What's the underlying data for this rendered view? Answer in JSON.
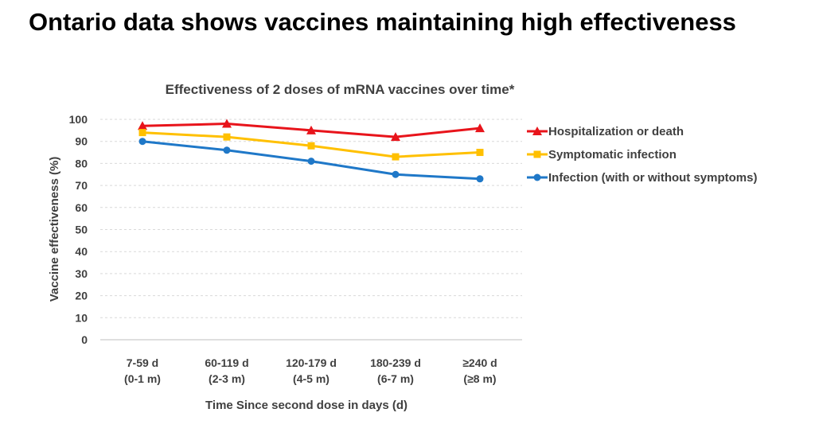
{
  "slide": {
    "title": "Ontario data shows vaccines maintaining high effectiveness"
  },
  "chart_data": {
    "type": "line",
    "title": "Effectiveness of 2 doses of mRNA vaccines over time*",
    "xlabel": "Time Since second dose in days (d)",
    "ylabel": "Vaccine effectiveness (%)",
    "ylim": [
      0,
      100
    ],
    "yticks": [
      0,
      10,
      20,
      30,
      40,
      50,
      60,
      70,
      80,
      90,
      100
    ],
    "grid": true,
    "legend_position": "right",
    "categories": [
      [
        "7-59 d",
        "(0-1 m)"
      ],
      [
        "60-119 d",
        "(2-3 m)"
      ],
      [
        "120-179 d",
        "(4-5 m)"
      ],
      [
        "180-239 d",
        "(6-7 m)"
      ],
      [
        "≥240 d",
        "(≥8 m)"
      ]
    ],
    "series": [
      {
        "name": "Hospitalization or death",
        "values": [
          97,
          98,
          95,
          92,
          96
        ],
        "color": "#e8141b",
        "marker": "triangle"
      },
      {
        "name": "Symptomatic infection",
        "values": [
          94,
          92,
          88,
          83,
          85
        ],
        "color": "#ffc000",
        "marker": "square"
      },
      {
        "name": "Infection (with or without symptoms)",
        "values": [
          90,
          86,
          81,
          75,
          73
        ],
        "color": "#1f78c8",
        "marker": "circle"
      }
    ]
  }
}
